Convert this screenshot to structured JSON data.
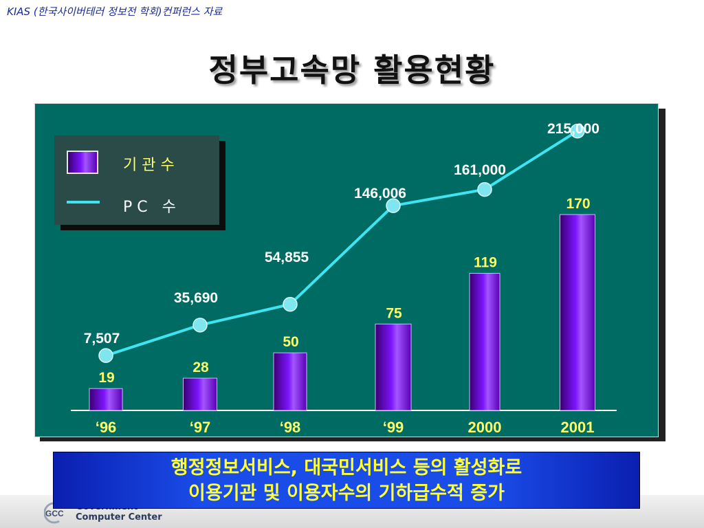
{
  "header": {
    "note": "KIAS (한국사이버테러 정보전 학회)컨퍼런스 자료"
  },
  "page": {
    "title": "정부고속망 활용현황"
  },
  "legend": {
    "bars_label": "기 관 수",
    "line_label": "P C   수"
  },
  "chart_data": {
    "type": "bar",
    "categories": [
      "‘96",
      "‘97",
      "‘98",
      "‘99",
      "2000",
      "2001"
    ],
    "series": [
      {
        "name": "기 관 수",
        "kind": "bar",
        "values": [
          19,
          28,
          50,
          75,
          119,
          170
        ],
        "labels": [
          "19",
          "28",
          "50",
          "75",
          "119",
          "170"
        ]
      },
      {
        "name": "P C   수",
        "kind": "line",
        "values": [
          7507,
          35690,
          54855,
          146006,
          161000,
          215000
        ],
        "labels": [
          "7,507",
          "35,690",
          "54,855",
          "146,006",
          "161,000",
          "215,000"
        ]
      }
    ],
    "colors": {
      "panel": "#006b62",
      "bar": "#7d14ff",
      "line": "#3fe4f2",
      "bar_label": "#ffff66",
      "line_label": "#ffffff",
      "axis_label": "#ffff66"
    }
  },
  "summary": {
    "line1": "행정정보서비스, 대국민서비스 등의 활성화로",
    "line2": "이용기관 및 이용자수의 기하급수적 증가"
  },
  "footer": {
    "logo_text": "GCC",
    "org_line1": "Government",
    "org_line2": "Computer Center"
  }
}
